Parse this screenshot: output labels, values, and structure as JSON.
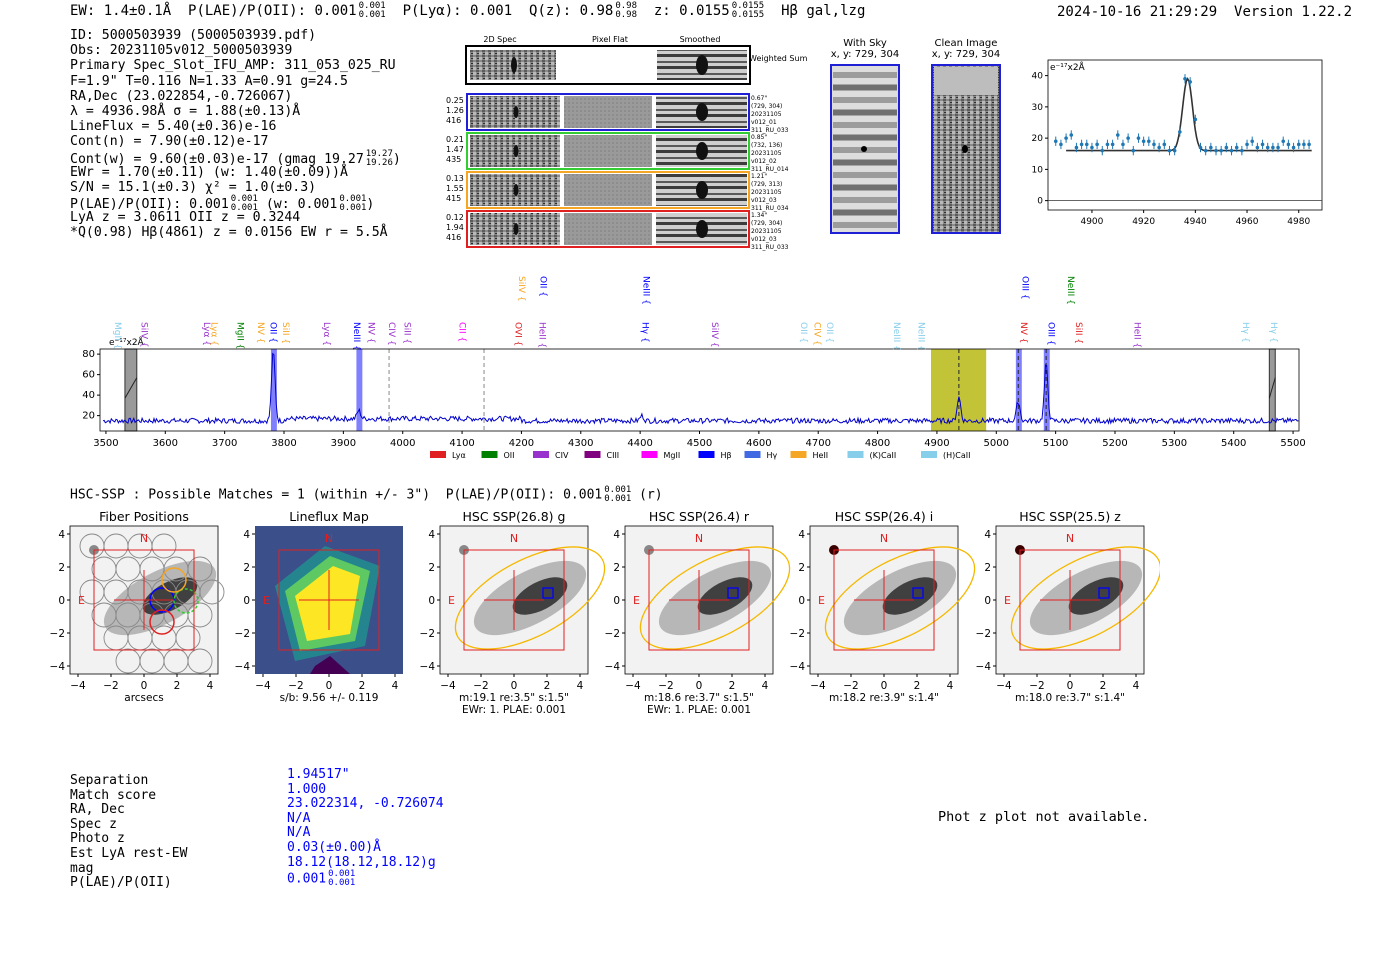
{
  "header": {
    "ew": "EW: 1.4±0.1Å",
    "plae_label": "P(LAE)/P(OII):",
    "plae_value": "0.001",
    "plae_hi": "0.001",
    "plae_lo": "0.001",
    "plya": "P(Lyα): 0.001",
    "qz_label": "Q(z): 0.98",
    "qz_hi": "0.98",
    "qz_lo": "0.98",
    "z_label": "z: 0.0155",
    "z_hi": "0.0155",
    "z_lo": "0.0155",
    "line_flags": "Hβ  gal,lzg",
    "datetime": "2024-10-16 21:29:29",
    "version": "Version 1.22.2"
  },
  "info_lines": [
    "ID: 5000503939 (5000503939.pdf)",
    "Obs: 20231105v012_5000503939",
    "Primary Spec_Slot_IFU_AMP: 311_053_025_RU",
    "F=1.9\"  T=0.116  N=1.33  A=0.91  g=24.5",
    "RA,Dec (23.022854,-0.726067)",
    "λ = 4936.98Å   σ = 1.88(±0.13)Å",
    "LineFlux = 5.40(±0.36)e-16",
    "Cont(n) = 7.90(±0.12)e-17",
    "Cont(w) = 9.60(±0.03)e-17 (gmag 19.27",
    "EWr = 1.70(±0.11) (w: 1.40(±0.09))Å",
    "S/N = 15.1(±0.3)  χ² = 1.0(±0.3)",
    "P(LAE)/P(OII): 0.001",
    "LyA z = 3.0611  OII z = 0.3244",
    "*Q(0.98) Hβ(4861) z = 0.0156  EW r = 5.5Å"
  ],
  "info_fracs": {
    "gmag_hi": "19.27",
    "gmag_lo": "19.26",
    "plae_hi": "0.001",
    "plae_lo": "0.001",
    "plae_w": "(w: 0.001",
    "plae_w_hi": "0.001",
    "plae_w_lo": "0.001",
    "close": ")"
  },
  "cutouts": {
    "col_titles": [
      "2D Spec",
      "Pixel Flat",
      "Smoothed"
    ],
    "weighted_sum": "Weighted Sum",
    "rows": [
      {
        "vals": [
          "0.25",
          "1.26",
          "416"
        ],
        "color": "#1f1fd6",
        "info": [
          "0.67\"",
          "(729, 304)",
          "20231105",
          "v012_01",
          "311_RU_033"
        ]
      },
      {
        "vals": [
          "0.21",
          "1.47",
          "435"
        ],
        "color": "#33cc33",
        "info": [
          "0.85\"",
          "(732, 136)",
          "20231105",
          "v012_02",
          "311_RU_014"
        ]
      },
      {
        "vals": [
          "0.13",
          "1.55",
          "415"
        ],
        "color": "#f5a623",
        "info": [
          "1.21\"",
          "(729, 313)",
          "20231105",
          "v012_03",
          "311_RU_034"
        ]
      },
      {
        "vals": [
          "0.12",
          "1.94",
          "416"
        ],
        "color": "#e02020",
        "info": [
          "1.34\"",
          "(729, 304)",
          "20231105",
          "v012_03",
          "311_RU_033"
        ]
      }
    ]
  },
  "sky": {
    "with_sky_title": "With Sky",
    "with_sky_xy": "x, y: 729, 304",
    "clean_title": "Clean Image",
    "clean_xy": "x, y: 729, 304"
  },
  "line_fit": {
    "unit_label": "e⁻¹⁷x2Å",
    "chart_data": {
      "type": "line",
      "xlim": [
        4883,
        4989
      ],
      "ylim": [
        -3,
        45
      ],
      "xticks": [
        4900,
        4920,
        4940,
        4960,
        4980
      ],
      "yticks": [
        0,
        10,
        20,
        30,
        40
      ],
      "continuum": 16,
      "peak_x": 4937,
      "peak_y": 39,
      "sigma": 1.9,
      "points_x": [
        4886,
        4888,
        4890,
        4892,
        4894,
        4896,
        4898,
        4900,
        4902,
        4904,
        4906,
        4908,
        4910,
        4912,
        4914,
        4916,
        4918,
        4920,
        4922,
        4924,
        4926,
        4928,
        4930,
        4932,
        4934,
        4936,
        4938,
        4940,
        4942,
        4944,
        4946,
        4948,
        4950,
        4952,
        4954,
        4956,
        4958,
        4960,
        4962,
        4964,
        4966,
        4968,
        4970,
        4972,
        4974,
        4976,
        4978,
        4980,
        4982,
        4984
      ],
      "points_y": [
        19,
        18,
        20,
        21,
        17,
        18,
        18,
        17,
        18,
        16,
        18,
        18,
        21,
        18,
        20,
        16,
        20,
        19,
        19,
        18,
        17,
        18,
        16,
        16,
        22,
        39,
        38,
        26,
        17,
        16,
        17,
        16,
        16,
        17,
        16,
        17,
        16,
        18,
        19,
        17,
        18,
        17,
        17,
        17,
        19,
        18,
        17,
        18,
        18,
        18
      ]
    }
  },
  "spectrum": {
    "unit_label": "e⁻¹⁷x2Å",
    "chart_data": {
      "type": "line",
      "xlim": [
        3490,
        5510
      ],
      "ylim": [
        5,
        85
      ],
      "xticks": [
        3500,
        3600,
        3700,
        3800,
        3900,
        4000,
        4100,
        4200,
        4300,
        4400,
        4500,
        4600,
        4700,
        4800,
        4900,
        5000,
        5100,
        5200,
        5300,
        5400,
        5500
      ],
      "yticks": [
        20,
        40,
        60,
        80
      ],
      "baseline": 15,
      "peaks": [
        [
          3782,
          82
        ],
        [
          3926,
          23
        ],
        [
          4403,
          20
        ],
        [
          4937,
          38
        ],
        [
          5037,
          34
        ],
        [
          5084,
          70
        ]
      ],
      "dashed_lines": [
        3977,
        4137,
        4937,
        5037,
        5084
      ],
      "highlight_blue": [
        [
          3778,
          3788
        ],
        [
          3922,
          3932
        ],
        [
          5033,
          5043
        ],
        [
          5080,
          5090
        ]
      ],
      "highlight_gray": [
        [
          3532,
          3552
        ],
        [
          5460,
          5470
        ]
      ],
      "highlight_olive": [
        [
          4890,
          4983
        ]
      ]
    },
    "line_labels": [
      {
        "x": 3510,
        "text": "MgII",
        "color": "#87ceeb",
        "row": 0
      },
      {
        "x": 3555,
        "text": "SiIV",
        "color": "#9932cc",
        "row": 0
      },
      {
        "x": 3660,
        "text": "Lyα",
        "color": "#9932cc",
        "row": 0
      },
      {
        "x": 3673,
        "text": "Lyα",
        "color": "#f5a623",
        "row": 0
      },
      {
        "x": 3717,
        "text": "MgII",
        "color": "#008000",
        "row": 0
      },
      {
        "x": 3751,
        "text": "NV",
        "color": "#f5a623",
        "row": 0
      },
      {
        "x": 3772,
        "text": "OII",
        "color": "#0000ff",
        "row": 0
      },
      {
        "x": 3793,
        "text": "SiII",
        "color": "#f5a623",
        "row": 0
      },
      {
        "x": 3862,
        "text": "Lyα",
        "color": "#9932cc",
        "row": 0
      },
      {
        "x": 3913,
        "text": "NeIII",
        "color": "#0000ff",
        "row": 0
      },
      {
        "x": 3937,
        "text": "NV",
        "color": "#9932cc",
        "row": 0
      },
      {
        "x": 3972,
        "text": "CIV",
        "color": "#9932cc",
        "row": 0
      },
      {
        "x": 3998,
        "text": "SiII",
        "color": "#9932cc",
        "row": 0
      },
      {
        "x": 4091,
        "text": "CII",
        "color": "#ff00ff",
        "row": 0
      },
      {
        "x": 4185,
        "text": "OVI",
        "color": "#e02020",
        "row": 0
      },
      {
        "x": 4225,
        "text": "HeII",
        "color": "#9932cc",
        "row": 0
      },
      {
        "x": 4191,
        "text": "SiIV",
        "color": "#f5a623",
        "row": 1
      },
      {
        "x": 4227,
        "text": "OII",
        "color": "#0000ff",
        "row": 1
      },
      {
        "x": 4401,
        "text": "NeIII",
        "color": "#0000ff",
        "row": 1
      },
      {
        "x": 4399,
        "text": "Hγ",
        "color": "#0000ff",
        "row": 0
      },
      {
        "x": 4516,
        "text": "SiIV",
        "color": "#9932cc",
        "row": 0
      },
      {
        "x": 4666,
        "text": "OII",
        "color": "#87ceeb",
        "row": 0
      },
      {
        "x": 4689,
        "text": "CIV",
        "color": "#f5a623",
        "row": 0
      },
      {
        "x": 4710,
        "text": "OII",
        "color": "#87ceeb",
        "row": 0
      },
      {
        "x": 4823,
        "text": "NeIII",
        "color": "#87ceeb",
        "row": 0
      },
      {
        "x": 4864,
        "text": "NeIII",
        "color": "#87ceeb",
        "row": 0
      },
      {
        "x": 5037,
        "text": "NV",
        "color": "#e02020",
        "row": 0
      },
      {
        "x": 5039,
        "text": "OIII",
        "color": "#0000ff",
        "row": 1
      },
      {
        "x": 5083,
        "text": "OIII",
        "color": "#0000ff",
        "row": 0
      },
      {
        "x": 5116,
        "text": "NeIII",
        "color": "#008000",
        "row": 1
      },
      {
        "x": 5129,
        "text": "SiII",
        "color": "#e02020",
        "row": 0
      },
      {
        "x": 5228,
        "text": "HeII",
        "color": "#9932cc",
        "row": 0
      },
      {
        "x": 5411,
        "text": "Hγ",
        "color": "#87ceeb",
        "row": 0
      },
      {
        "x": 5458,
        "text": "Hγ",
        "color": "#87ceeb",
        "row": 0
      }
    ],
    "legend": [
      {
        "label": "Lyα",
        "color": "#e02020"
      },
      {
        "label": "OII",
        "color": "#008000"
      },
      {
        "label": "CIV",
        "color": "#9932cc"
      },
      {
        "label": "CIII",
        "color": "#800080"
      },
      {
        "label": "MgII",
        "color": "#ff00ff"
      },
      {
        "label": "Hβ",
        "color": "#0000ff"
      },
      {
        "label": "Hγ",
        "color": "#4169e1"
      },
      {
        "label": "HeII",
        "color": "#f5a623"
      },
      {
        "label": "(K)CaII",
        "color": "#87ceeb"
      },
      {
        "label": "(H)CaII",
        "color": "#87ceeb"
      }
    ]
  },
  "hsc": {
    "title_prefix": "HSC-SSP : Possible Matches = 1 (within +/- 3\")",
    "plae": "P(LAE)/P(OII): 0.001",
    "plae_hi": "0.001",
    "plae_lo": "0.001",
    "suffix": "(r)",
    "north": "N",
    "east": "E",
    "ticks": [
      "4",
      "2",
      "0",
      "−2",
      "−4"
    ],
    "xticks": [
      "−4",
      "−2",
      "0",
      "2",
      "4"
    ],
    "panels": [
      {
        "title": "Fiber Positions",
        "caption1": "arcsecs",
        "caption2": ""
      },
      {
        "title": "Lineflux Map",
        "caption1": "s/b: 9.56 +/- 0.119",
        "caption2": ""
      },
      {
        "title": "HSC SSP(26.8) g",
        "caption1": "m:19.1   re:3.5\"   s:1.5\"",
        "caption2": "EWr: 1. PLAE: 0.001"
      },
      {
        "title": "HSC SSP(26.4) r",
        "caption1": "m:18.6   re:3.7\"   s:1.5\"",
        "caption2": "EWr: 1. PLAE: 0.001"
      },
      {
        "title": "HSC SSP(26.4) i",
        "caption1": "m:18.2   re:3.9\"   s:1.4\"",
        "caption2": ""
      },
      {
        "title": "HSC SSP(25.5) z",
        "caption1": "m:18.0   re:3.7\"   s:1.4\"",
        "caption2": ""
      }
    ]
  },
  "match": {
    "labels": [
      "Separation",
      "Match score",
      "RA, Dec",
      "Spec z",
      "Photo z",
      "Est LyA rest-EW",
      "mag",
      "P(LAE)/P(OII)"
    ],
    "values": [
      "1.94517\"",
      "1.000",
      "23.022314, -0.726074",
      "N/A",
      "N/A",
      "0.03(±0.00)Å",
      "18.12(18.12,18.12)g",
      "0.001"
    ],
    "plae_hi": "0.001",
    "plae_lo": "0.001"
  },
  "phot_z": "Phot z plot not available."
}
